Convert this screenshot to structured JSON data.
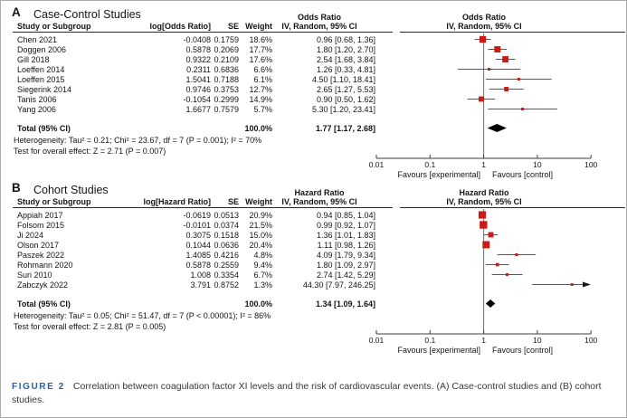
{
  "caption": {
    "label": "FIGURE 2",
    "text": "Correlation between coagulation factor XI levels and the risk of cardiovascular events. (A) Case-control studies and (B) cohort studies."
  },
  "colors": {
    "marker": "#cc1a14",
    "whisker": "#58585a",
    "zero_line": "#707070",
    "axis": "#3f3f3f",
    "diamond": "#000000",
    "caption_label": "#2e5f9e"
  },
  "axis": {
    "scale": "log",
    "ticks": [
      0.01,
      0.1,
      1,
      10,
      100
    ],
    "tick_labels": [
      "0.01",
      "0.1",
      "1",
      "10",
      "100"
    ],
    "favours_left": "Favours [experimental]",
    "favours_right": "Favours [control]"
  },
  "chart_data": [
    {
      "type": "forest",
      "panel_label": "A",
      "title": "Case-Control Studies",
      "effect_label": "Odds Ratio",
      "model_label": "IV, Random, 95% CI",
      "columns": [
        "Study or Subgroup",
        "log[Odds Ratio]",
        "SE",
        "Weight",
        "IV, Random, 95% CI"
      ],
      "studies": [
        {
          "name": "Chen 2021",
          "log": "-0.0408",
          "se": "0.1759",
          "weight": "18.6%",
          "weight_num": 18.6,
          "est": 0.96,
          "lo": 0.68,
          "hi": 1.36,
          "ci_text": "0.96 [0.68, 1.36]"
        },
        {
          "name": "Doggen 2006",
          "log": "0.5878",
          "se": "0.2069",
          "weight": "17.7%",
          "weight_num": 17.7,
          "est": 1.8,
          "lo": 1.2,
          "hi": 2.7,
          "ci_text": "1.80 [1.20, 2.70]"
        },
        {
          "name": "Gill 2018",
          "log": "0.9322",
          "se": "0.2109",
          "weight": "17.6%",
          "weight_num": 17.6,
          "est": 2.54,
          "lo": 1.68,
          "hi": 3.84,
          "ci_text": "2.54 [1.68, 3.84]"
        },
        {
          "name": "Loeffen 2014",
          "log": "0.2311",
          "se": "0.6836",
          "weight": "6.6%",
          "weight_num": 6.6,
          "est": 1.26,
          "lo": 0.33,
          "hi": 4.81,
          "ci_text": "1.26 [0.33, 4.81]"
        },
        {
          "name": "Loeffen 2015",
          "log": "1.5041",
          "se": "0.7188",
          "weight": "6.1%",
          "weight_num": 6.1,
          "est": 4.5,
          "lo": 1.1,
          "hi": 18.41,
          "ci_text": "4.50 [1.10, 18.41]"
        },
        {
          "name": "Siegerink 2014",
          "log": "0.9746",
          "se": "0.3753",
          "weight": "12.7%",
          "weight_num": 12.7,
          "est": 2.65,
          "lo": 1.27,
          "hi": 5.53,
          "ci_text": "2.65 [1.27, 5.53]"
        },
        {
          "name": "Tanis 2006",
          "log": "-0.1054",
          "se": "0.2999",
          "weight": "14.9%",
          "weight_num": 14.9,
          "est": 0.9,
          "lo": 0.5,
          "hi": 1.62,
          "ci_text": "0.90 [0.50, 1.62]"
        },
        {
          "name": "Yang 2006",
          "log": "1.6677",
          "se": "0.7579",
          "weight": "5.7%",
          "weight_num": 5.7,
          "est": 5.3,
          "lo": 1.2,
          "hi": 23.41,
          "ci_text": "5.30 [1.20, 23.41]"
        }
      ],
      "total": {
        "label": "Total (95% CI)",
        "weight": "100.0%",
        "est": 1.77,
        "lo": 1.17,
        "hi": 2.68,
        "ci_text": "1.77 [1.17, 2.68]"
      },
      "heterogeneity": "Heterogeneity: Tau² = 0.21; Chi² = 23.67, df = 7 (P = 0.001); I² = 70%",
      "overall_effect": "Test for overall effect: Z = 2.71 (P = 0.007)"
    },
    {
      "type": "forest",
      "panel_label": "B",
      "title": "Cohort Studies",
      "effect_label": "Hazard Ratio",
      "model_label": "IV, Random, 95% CI",
      "columns": [
        "Study or Subgroup",
        "log[Hazard Ratio]",
        "SE",
        "Weight",
        "IV, Random, 95% CI"
      ],
      "studies": [
        {
          "name": "Appiah 2017",
          "log": "-0.0619",
          "se": "0.0513",
          "weight": "20.9%",
          "weight_num": 20.9,
          "est": 0.94,
          "lo": 0.85,
          "hi": 1.04,
          "ci_text": "0.94 [0.85, 1.04]"
        },
        {
          "name": "Folsom 2015",
          "log": "-0.0101",
          "se": "0.0374",
          "weight": "21.5%",
          "weight_num": 21.5,
          "est": 0.99,
          "lo": 0.92,
          "hi": 1.07,
          "ci_text": "0.99 [0.92, 1.07]"
        },
        {
          "name": "Ji 2024",
          "log": "0.3075",
          "se": "0.1518",
          "weight": "15.0%",
          "weight_num": 15.0,
          "est": 1.36,
          "lo": 1.01,
          "hi": 1.83,
          "ci_text": "1.36 [1.01, 1.83]"
        },
        {
          "name": "Olson 2017",
          "log": "0.1044",
          "se": "0.0636",
          "weight": "20.4%",
          "weight_num": 20.4,
          "est": 1.11,
          "lo": 0.98,
          "hi": 1.26,
          "ci_text": "1.11 [0.98, 1.26]"
        },
        {
          "name": "Paszek 2022",
          "log": "1.4085",
          "se": "0.4216",
          "weight": "4.8%",
          "weight_num": 4.8,
          "est": 4.09,
          "lo": 1.79,
          "hi": 9.34,
          "ci_text": "4.09 [1.79, 9.34]"
        },
        {
          "name": "Rohmann 2020",
          "log": "0.5878",
          "se": "0.2559",
          "weight": "9.4%",
          "weight_num": 9.4,
          "est": 1.8,
          "lo": 1.09,
          "hi": 2.97,
          "ci_text": "1.80 [1.09, 2.97]"
        },
        {
          "name": "Suri 2010",
          "log": "1.008",
          "se": "0.3354",
          "weight": "6.7%",
          "weight_num": 6.7,
          "est": 2.74,
          "lo": 1.42,
          "hi": 5.29,
          "ci_text": "2.74 [1.42, 5.29]"
        },
        {
          "name": "Zabczyk 2022",
          "log": "3.791",
          "se": "0.8752",
          "weight": "1.3%",
          "weight_num": 1.3,
          "est": 44.3,
          "lo": 7.97,
          "hi": 246.25,
          "ci_text": "44.30 [7.97, 246.25]"
        }
      ],
      "total": {
        "label": "Total (95% CI)",
        "weight": "100.0%",
        "est": 1.34,
        "lo": 1.09,
        "hi": 1.64,
        "ci_text": "1.34 [1.09, 1.64]"
      },
      "heterogeneity": "Heterogeneity: Tau² = 0.05; Chi² = 51.47, df = 7 (P < 0.00001); I² = 86%",
      "overall_effect": "Test for overall effect: Z = 2.81 (P = 0.005)"
    }
  ]
}
